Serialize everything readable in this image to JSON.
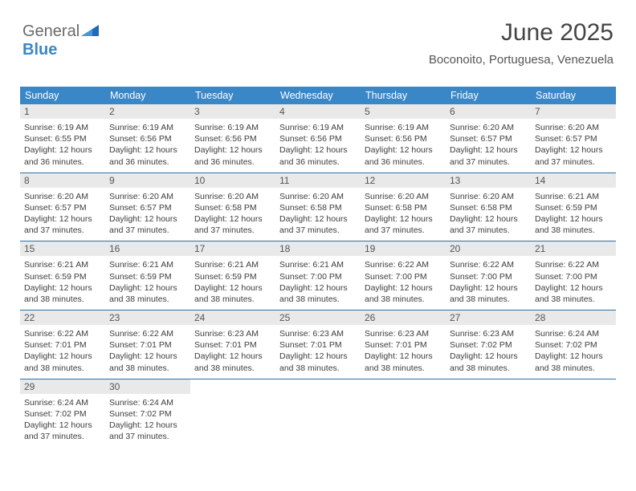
{
  "logo": {
    "word1": "General",
    "word2": "Blue"
  },
  "header": {
    "title": "June 2025",
    "location": "Boconoito, Portuguesa, Venezuela"
  },
  "colors": {
    "header_bg": "#3a87c8",
    "week_border": "#2e6fa3",
    "daynum_bg": "#e9e9e9",
    "text": "#3a3a3a"
  },
  "days_of_week": [
    "Sunday",
    "Monday",
    "Tuesday",
    "Wednesday",
    "Thursday",
    "Friday",
    "Saturday"
  ],
  "weeks": [
    [
      {
        "n": "1",
        "sr": "6:19 AM",
        "ss": "6:55 PM",
        "dl": "12 hours and 36 minutes."
      },
      {
        "n": "2",
        "sr": "6:19 AM",
        "ss": "6:56 PM",
        "dl": "12 hours and 36 minutes."
      },
      {
        "n": "3",
        "sr": "6:19 AM",
        "ss": "6:56 PM",
        "dl": "12 hours and 36 minutes."
      },
      {
        "n": "4",
        "sr": "6:19 AM",
        "ss": "6:56 PM",
        "dl": "12 hours and 36 minutes."
      },
      {
        "n": "5",
        "sr": "6:19 AM",
        "ss": "6:56 PM",
        "dl": "12 hours and 36 minutes."
      },
      {
        "n": "6",
        "sr": "6:20 AM",
        "ss": "6:57 PM",
        "dl": "12 hours and 37 minutes."
      },
      {
        "n": "7",
        "sr": "6:20 AM",
        "ss": "6:57 PM",
        "dl": "12 hours and 37 minutes."
      }
    ],
    [
      {
        "n": "8",
        "sr": "6:20 AM",
        "ss": "6:57 PM",
        "dl": "12 hours and 37 minutes."
      },
      {
        "n": "9",
        "sr": "6:20 AM",
        "ss": "6:57 PM",
        "dl": "12 hours and 37 minutes."
      },
      {
        "n": "10",
        "sr": "6:20 AM",
        "ss": "6:58 PM",
        "dl": "12 hours and 37 minutes."
      },
      {
        "n": "11",
        "sr": "6:20 AM",
        "ss": "6:58 PM",
        "dl": "12 hours and 37 minutes."
      },
      {
        "n": "12",
        "sr": "6:20 AM",
        "ss": "6:58 PM",
        "dl": "12 hours and 37 minutes."
      },
      {
        "n": "13",
        "sr": "6:20 AM",
        "ss": "6:58 PM",
        "dl": "12 hours and 37 minutes."
      },
      {
        "n": "14",
        "sr": "6:21 AM",
        "ss": "6:59 PM",
        "dl": "12 hours and 38 minutes."
      }
    ],
    [
      {
        "n": "15",
        "sr": "6:21 AM",
        "ss": "6:59 PM",
        "dl": "12 hours and 38 minutes."
      },
      {
        "n": "16",
        "sr": "6:21 AM",
        "ss": "6:59 PM",
        "dl": "12 hours and 38 minutes."
      },
      {
        "n": "17",
        "sr": "6:21 AM",
        "ss": "6:59 PM",
        "dl": "12 hours and 38 minutes."
      },
      {
        "n": "18",
        "sr": "6:21 AM",
        "ss": "7:00 PM",
        "dl": "12 hours and 38 minutes."
      },
      {
        "n": "19",
        "sr": "6:22 AM",
        "ss": "7:00 PM",
        "dl": "12 hours and 38 minutes."
      },
      {
        "n": "20",
        "sr": "6:22 AM",
        "ss": "7:00 PM",
        "dl": "12 hours and 38 minutes."
      },
      {
        "n": "21",
        "sr": "6:22 AM",
        "ss": "7:00 PM",
        "dl": "12 hours and 38 minutes."
      }
    ],
    [
      {
        "n": "22",
        "sr": "6:22 AM",
        "ss": "7:01 PM",
        "dl": "12 hours and 38 minutes."
      },
      {
        "n": "23",
        "sr": "6:22 AM",
        "ss": "7:01 PM",
        "dl": "12 hours and 38 minutes."
      },
      {
        "n": "24",
        "sr": "6:23 AM",
        "ss": "7:01 PM",
        "dl": "12 hours and 38 minutes."
      },
      {
        "n": "25",
        "sr": "6:23 AM",
        "ss": "7:01 PM",
        "dl": "12 hours and 38 minutes."
      },
      {
        "n": "26",
        "sr": "6:23 AM",
        "ss": "7:01 PM",
        "dl": "12 hours and 38 minutes."
      },
      {
        "n": "27",
        "sr": "6:23 AM",
        "ss": "7:02 PM",
        "dl": "12 hours and 38 minutes."
      },
      {
        "n": "28",
        "sr": "6:24 AM",
        "ss": "7:02 PM",
        "dl": "12 hours and 38 minutes."
      }
    ],
    [
      {
        "n": "29",
        "sr": "6:24 AM",
        "ss": "7:02 PM",
        "dl": "12 hours and 37 minutes."
      },
      {
        "n": "30",
        "sr": "6:24 AM",
        "ss": "7:02 PM",
        "dl": "12 hours and 37 minutes."
      },
      null,
      null,
      null,
      null,
      null
    ]
  ],
  "labels": {
    "sunrise": "Sunrise: ",
    "sunset": "Sunset: ",
    "daylight": "Daylight: "
  }
}
